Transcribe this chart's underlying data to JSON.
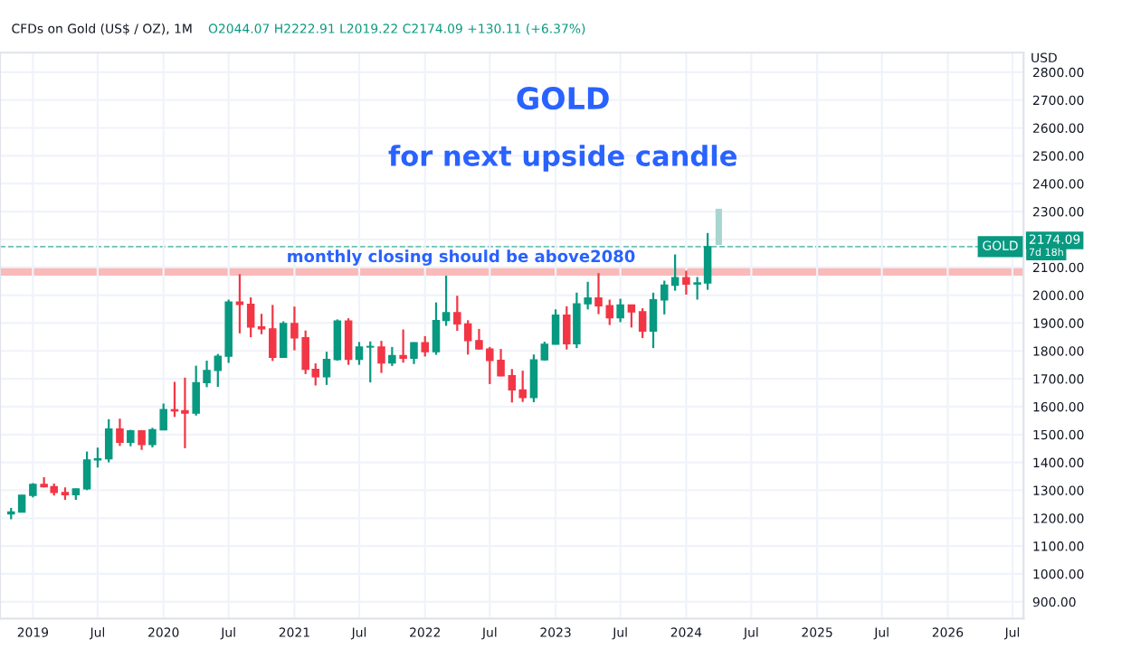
{
  "chart_data": {
    "type": "candlestick",
    "title": "GOLD",
    "subtitle": "for next upside candle",
    "ylabel": "USD",
    "annotations": [
      "CFDs on Gold (US$ / OZ), 1M",
      "O2044.07 H2222.91 L2019.22 C2174.09 +130.11 (+6.37%)",
      "7d 18h",
      "2174.09"
    ],
    "x": [
      "2018-11",
      "2018-12",
      "2019-01",
      "2019-02",
      "2019-03",
      "2019-04",
      "2019-05",
      "2019-06",
      "2019-07",
      "2019-08",
      "2019-09",
      "2019-10",
      "2019-11",
      "2019-12",
      "2020-01",
      "2020-02",
      "2020-03",
      "2020-04",
      "2020-05",
      "2020-06",
      "2020-07",
      "2020-08",
      "2020-09",
      "2020-10",
      "2020-11",
      "2020-12",
      "2021-01",
      "2021-02",
      "2021-03",
      "2021-04",
      "2021-05",
      "2021-06",
      "2021-07",
      "2021-08",
      "2021-09",
      "2021-10",
      "2021-11",
      "2021-12",
      "2022-01",
      "2022-02",
      "2022-03",
      "2022-04",
      "2022-05",
      "2022-06",
      "2022-07",
      "2022-08",
      "2022-09",
      "2022-10",
      "2022-11",
      "2022-12",
      "2023-01",
      "2023-02",
      "2023-03",
      "2023-04",
      "2023-05",
      "2023-06",
      "2023-07",
      "2023-08",
      "2023-09",
      "2023-10",
      "2023-11",
      "2023-12",
      "2024-01",
      "2024-02",
      "2024-03"
    ],
    "ohlc": [
      [
        1215,
        1237,
        1196,
        1222
      ],
      [
        1222,
        1284,
        1221,
        1282
      ],
      [
        1282,
        1326,
        1275,
        1321
      ],
      [
        1321,
        1347,
        1310,
        1313
      ],
      [
        1313,
        1324,
        1281,
        1292
      ],
      [
        1292,
        1310,
        1266,
        1284
      ],
      [
        1284,
        1306,
        1266,
        1305
      ],
      [
        1305,
        1439,
        1301,
        1409
      ],
      [
        1409,
        1453,
        1382,
        1413
      ],
      [
        1413,
        1555,
        1400,
        1520
      ],
      [
        1520,
        1557,
        1459,
        1472
      ],
      [
        1472,
        1517,
        1458,
        1513
      ],
      [
        1513,
        1516,
        1445,
        1464
      ],
      [
        1464,
        1524,
        1454,
        1517
      ],
      [
        1517,
        1611,
        1517,
        1589
      ],
      [
        1589,
        1689,
        1563,
        1585
      ],
      [
        1585,
        1704,
        1451,
        1577
      ],
      [
        1577,
        1747,
        1568,
        1686
      ],
      [
        1686,
        1765,
        1670,
        1730
      ],
      [
        1730,
        1789,
        1671,
        1781
      ],
      [
        1781,
        1984,
        1757,
        1975
      ],
      [
        1975,
        2075,
        1863,
        1967
      ],
      [
        1967,
        1992,
        1849,
        1886
      ],
      [
        1886,
        1933,
        1860,
        1879
      ],
      [
        1879,
        1965,
        1764,
        1777
      ],
      [
        1777,
        1906,
        1775,
        1898
      ],
      [
        1898,
        1959,
        1802,
        1847
      ],
      [
        1847,
        1873,
        1717,
        1734
      ],
      [
        1734,
        1755,
        1676,
        1707
      ],
      [
        1707,
        1797,
        1678,
        1769
      ],
      [
        1769,
        1913,
        1765,
        1907
      ],
      [
        1907,
        1917,
        1750,
        1770
      ],
      [
        1770,
        1832,
        1750,
        1814
      ],
      [
        1814,
        1834,
        1687,
        1814
      ],
      [
        1814,
        1836,
        1721,
        1757
      ],
      [
        1757,
        1814,
        1746,
        1783
      ],
      [
        1783,
        1877,
        1758,
        1774
      ],
      [
        1774,
        1831,
        1753,
        1829
      ],
      [
        1829,
        1853,
        1780,
        1797
      ],
      [
        1797,
        1974,
        1786,
        1909
      ],
      [
        1909,
        2070,
        1890,
        1937
      ],
      [
        1937,
        1998,
        1872,
        1897
      ],
      [
        1897,
        1910,
        1787,
        1837
      ],
      [
        1837,
        1879,
        1805,
        1807
      ],
      [
        1807,
        1814,
        1681,
        1766
      ],
      [
        1766,
        1807,
        1709,
        1711
      ],
      [
        1711,
        1735,
        1615,
        1660
      ],
      [
        1660,
        1729,
        1617,
        1633
      ],
      [
        1633,
        1787,
        1616,
        1768
      ],
      [
        1768,
        1833,
        1765,
        1824
      ],
      [
        1824,
        1949,
        1823,
        1928
      ],
      [
        1928,
        1960,
        1805,
        1826
      ],
      [
        1826,
        2009,
        1810,
        1969
      ],
      [
        1969,
        2048,
        1949,
        1990
      ],
      [
        1990,
        2079,
        1932,
        1962
      ],
      [
        1962,
        1984,
        1893,
        1919
      ],
      [
        1919,
        1987,
        1903,
        1965
      ],
      [
        1965,
        1966,
        1884,
        1940
      ],
      [
        1940,
        1953,
        1846,
        1871
      ],
      [
        1871,
        2009,
        1810,
        1983
      ],
      [
        1983,
        2052,
        1931,
        2036
      ],
      [
        2036,
        2146,
        2016,
        2063
      ],
      [
        2063,
        2088,
        2002,
        2040
      ],
      [
        2040,
        2065,
        1984,
        2044
      ],
      [
        2044.07,
        2222.91,
        2019.22,
        2174.09
      ]
    ],
    "colors": [
      "#089981",
      "#089981",
      "#089981",
      "#f23645",
      "#f23645",
      "#f23645",
      "#089981",
      "#089981",
      "#089981",
      "#089981",
      "#f23645",
      "#089981",
      "#f23645",
      "#089981",
      "#089981",
      "#f23645",
      "#f23645",
      "#089981",
      "#089981",
      "#089981",
      "#089981",
      "#f23645",
      "#f23645",
      "#f23645",
      "#f23645",
      "#089981",
      "#f23645",
      "#f23645",
      "#f23645",
      "#089981",
      "#089981",
      "#f23645",
      "#089981",
      "#089981",
      "#f23645",
      "#089981",
      "#f23645",
      "#089981",
      "#f23645",
      "#089981",
      "#089981",
      "#f23645",
      "#f23645",
      "#f23645",
      "#f23645",
      "#f23645",
      "#f23645",
      "#f23645",
      "#089981",
      "#089981",
      "#089981",
      "#f23645",
      "#089981",
      "#089981",
      "#f23645",
      "#f23645",
      "#089981",
      "#f23645",
      "#f23645",
      "#089981",
      "#089981",
      "#089981",
      "#f23645",
      "#089981",
      "#089981"
    ],
    "series": [
      {
        "type": "bar",
        "x": [
          "2024-04"
        ],
        "base": [
          2180
        ],
        "values": [
          130
        ],
        "color": "#a8d5cf"
      }
    ],
    "bands": [
      {
        "axis": "y",
        "from": 2070,
        "to": 2100,
        "label": "monthly closing should be above2080",
        "color": "#f7a9a8"
      }
    ],
    "ref_lines": [
      {
        "axis": "y",
        "value": 2174.09,
        "label": "GOLD",
        "color": "#089981",
        "line_style": "dashed"
      }
    ],
    "xlim": [
      "2018-10",
      "2026-08"
    ],
    "xticks": [
      {
        "value": "2019-01",
        "label": "2019"
      },
      {
        "value": "2019-07",
        "label": "Jul"
      },
      {
        "value": "2020-01",
        "label": "2020"
      },
      {
        "value": "2020-07",
        "label": "Jul"
      },
      {
        "value": "2021-01",
        "label": "2021"
      },
      {
        "value": "2021-07",
        "label": "Jul"
      },
      {
        "value": "2022-01",
        "label": "2022"
      },
      {
        "value": "2022-07",
        "label": "Jul"
      },
      {
        "value": "2023-01",
        "label": "2023"
      },
      {
        "value": "2023-07",
        "label": "Jul"
      },
      {
        "value": "2024-01",
        "label": "2024"
      },
      {
        "value": "2024-07",
        "label": "Jul"
      },
      {
        "value": "2025-01",
        "label": "2025"
      },
      {
        "value": "2025-07",
        "label": "Jul"
      },
      {
        "value": "2026-01",
        "label": "2026"
      },
      {
        "value": "2026-07",
        "label": "Jul"
      }
    ],
    "ylim": [
      840,
      2870
    ],
    "yticks": [
      {
        "value": 900,
        "label": "900.00"
      },
      {
        "value": 1000,
        "label": "1000.00"
      },
      {
        "value": 1100,
        "label": "1100.00"
      },
      {
        "value": 1200,
        "label": "1200.00"
      },
      {
        "value": 1300,
        "label": "1300.00"
      },
      {
        "value": 1400,
        "label": "1400.00"
      },
      {
        "value": 1500,
        "label": "1500.00"
      },
      {
        "value": 1600,
        "label": "1600.00"
      },
      {
        "value": 1700,
        "label": "1700.00"
      },
      {
        "value": 1800,
        "label": "1800.00"
      },
      {
        "value": 1900,
        "label": "1900.00"
      },
      {
        "value": 2000,
        "label": "2000.00"
      },
      {
        "value": 2100,
        "label": "2100.00"
      },
      {
        "value": 2200,
        "label": null
      },
      {
        "value": 2300,
        "label": "2300.00"
      },
      {
        "value": 2400,
        "label": "2400.00"
      },
      {
        "value": 2500,
        "label": "2500.00"
      },
      {
        "value": 2600,
        "label": "2600.00"
      },
      {
        "value": 2700,
        "label": "2700.00"
      },
      {
        "value": 2800,
        "label": "2800.00"
      }
    ],
    "grid": true,
    "legend": false
  }
}
